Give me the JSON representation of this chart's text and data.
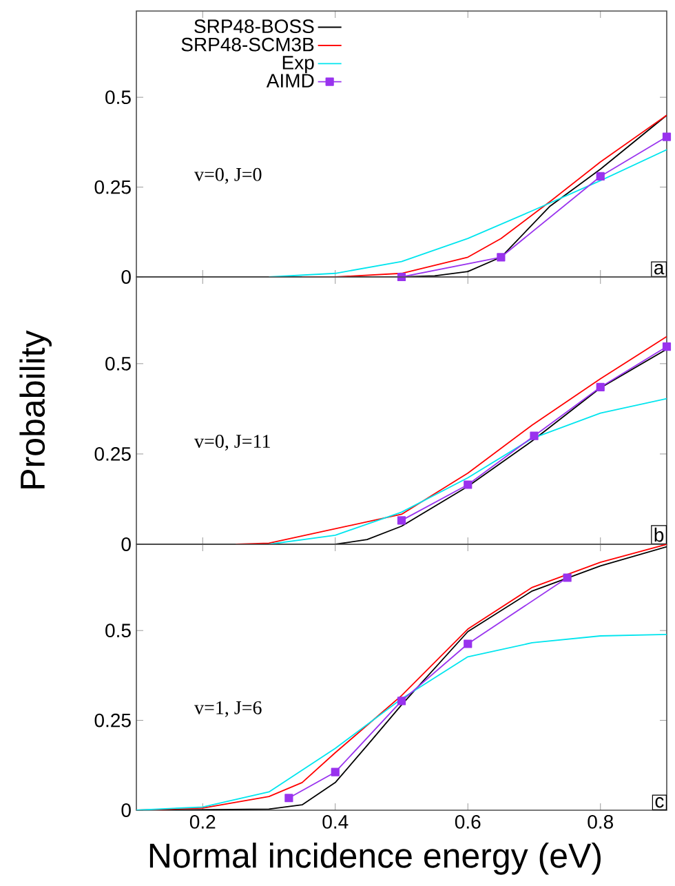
{
  "chart_data": [
    {
      "type": "line",
      "xlim": [
        0.1,
        0.9
      ],
      "ylim": [
        0,
        0.74
      ],
      "xticks": [
        0.2,
        0.4,
        0.6,
        0.8
      ],
      "yticks": [
        0,
        0.25,
        0.5
      ],
      "tick_labels": "y",
      "legend": "top left",
      "annotations": [
        "v=0, J=0",
        "a"
      ],
      "series": [
        {
          "name": "SRP48-BOSS",
          "color": "#000000",
          "x": [
            0.1,
            0.4,
            0.5,
            0.55,
            0.6,
            0.65,
            0.724,
            0.8,
            0.9
          ],
          "values": [
            0,
            0,
            0,
            0.003,
            0.015,
            0.055,
            0.197,
            0.3,
            0.45
          ]
        },
        {
          "name": "SRP48-SCM3B",
          "color": "#ff0000",
          "x": [
            0.35,
            0.4,
            0.5,
            0.6,
            0.65,
            0.724,
            0.8,
            0.9
          ],
          "values": [
            0,
            0,
            0.01,
            0.055,
            0.107,
            0.21,
            0.32,
            0.45
          ]
        },
        {
          "name": "Exp",
          "color": "#00e5ee",
          "x": [
            0.3,
            0.4,
            0.5,
            0.6,
            0.697,
            0.8,
            0.9
          ],
          "values": [
            0,
            0.01,
            0.043,
            0.107,
            0.184,
            0.268,
            0.354
          ]
        },
        {
          "name": "AIMD",
          "color": "#9933ee",
          "marker": "square",
          "x": [
            0.5,
            0.65,
            0.8,
            0.9
          ],
          "values": [
            0,
            0.055,
            0.28,
            0.39
          ]
        }
      ]
    },
    {
      "type": "line",
      "xlim": [
        0.1,
        0.9
      ],
      "ylim": [
        0,
        0.74
      ],
      "xticks": [
        0.2,
        0.4,
        0.6,
        0.8
      ],
      "yticks": [
        0,
        0.25,
        0.5
      ],
      "tick_labels": "y",
      "ylabel": "Probability",
      "annotations": [
        "v=0, J=11",
        "b"
      ],
      "series": [
        {
          "color": "#000000",
          "x": [
            0.1,
            0.4,
            0.448,
            0.5,
            0.6,
            0.697,
            0.8,
            0.9
          ],
          "values": [
            0,
            0,
            0.013,
            0.05,
            0.16,
            0.286,
            0.433,
            0.54
          ]
        },
        {
          "color": "#ff0000",
          "x": [
            0.25,
            0.3,
            0.4,
            0.5,
            0.6,
            0.697,
            0.8,
            0.9
          ],
          "values": [
            0,
            0.003,
            null,
            0.083,
            0.197,
            0.33,
            0.458,
            0.575
          ]
        },
        {
          "color": "#00e5ee",
          "x": [
            0.3,
            0.4,
            0.5,
            0.6,
            0.697,
            0.8,
            0.9
          ],
          "values": [
            0,
            0.025,
            0.089,
            0.184,
            0.293,
            0.363,
            0.403
          ]
        },
        {
          "color": "#9933ee",
          "marker": "square",
          "x": [
            0.5,
            0.6,
            0.7,
            0.8,
            0.9
          ],
          "values": [
            0.066,
            0.165,
            0.3,
            0.435,
            0.547
          ]
        }
      ]
    },
    {
      "type": "line",
      "xlim": [
        0.1,
        0.9
      ],
      "ylim": [
        0,
        0.74
      ],
      "xticks": [
        0.2,
        0.4,
        0.6,
        0.8
      ],
      "yticks": [
        0,
        0.25,
        0.5
      ],
      "xlabel": "Normal incidence energy (eV)",
      "annotations": [
        "v=1, J=6",
        "c"
      ],
      "series": [
        {
          "color": "#000000",
          "x": [
            0.1,
            0.3,
            0.35,
            0.4,
            0.448,
            0.5,
            0.6,
            0.697,
            0.8,
            0.9
          ],
          "values": [
            0,
            0.003,
            0.015,
            0.077,
            0.18,
            0.293,
            0.497,
            0.61,
            0.68,
            0.733
          ]
        },
        {
          "color": "#ff0000",
          "x": [
            0.1,
            0.2,
            0.3,
            0.35,
            0.4,
            0.5,
            0.6,
            0.697,
            0.8,
            0.9
          ],
          "values": [
            0,
            0.006,
            0.038,
            0.077,
            0.16,
            0.319,
            0.504,
            0.62,
            0.69,
            0.74
          ]
        },
        {
          "color": "#00e5ee",
          "x": [
            0.1,
            0.2,
            0.3,
            0.4,
            0.5,
            0.6,
            0.697,
            0.8,
            0.9
          ],
          "values": [
            0,
            0.009,
            0.051,
            0.172,
            0.31,
            0.427,
            0.466,
            0.485,
            0.489
          ]
        },
        {
          "color": "#9933ee",
          "marker": "square",
          "x": [
            0.33,
            0.4,
            0.5,
            0.6,
            0.75
          ],
          "values": [
            0.034,
            0.106,
            0.304,
            0.463,
            0.647
          ]
        }
      ]
    }
  ]
}
